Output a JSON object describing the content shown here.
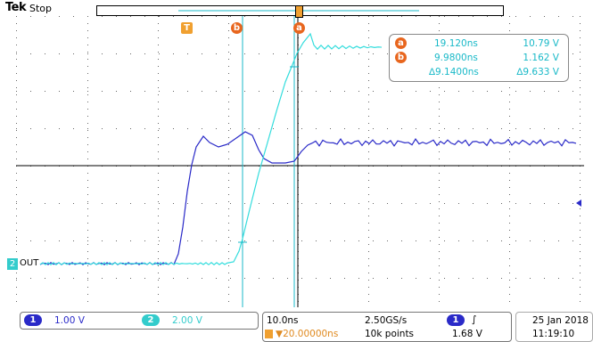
{
  "header": {
    "brand": "Tek",
    "status": "Stop"
  },
  "markers": {
    "trigger": "T",
    "cursor_a": "a",
    "cursor_b": "b"
  },
  "measurements": {
    "a": {
      "time": "19.120ns",
      "value": "10.79 V"
    },
    "b": {
      "time": "9.9800ns",
      "value": "1.162 V"
    },
    "delta": {
      "time": "∆9.1400ns",
      "value": "∆9.633 V"
    }
  },
  "channels": {
    "ch2_marker": "2",
    "signal_label": "OUT"
  },
  "bottom": {
    "ch1": {
      "num": "1",
      "scale": "1.00 V"
    },
    "ch2": {
      "num": "2",
      "scale": "2.00 V"
    },
    "timebase": "10.0ns",
    "sample_rate": "2.50GS/s",
    "trigger_pos": "▼20.00000ns",
    "record_length": "10k points",
    "trigger_ch": "1",
    "trigger_slope": "∫",
    "trigger_level": "1.68 V",
    "date": "25 Jan 2018",
    "time": "11:19:10"
  },
  "colors": {
    "ch1": "#2a2ac8",
    "ch2": "#33dddd",
    "cursor": "#19b9c8",
    "marker": "#e8661e"
  }
}
